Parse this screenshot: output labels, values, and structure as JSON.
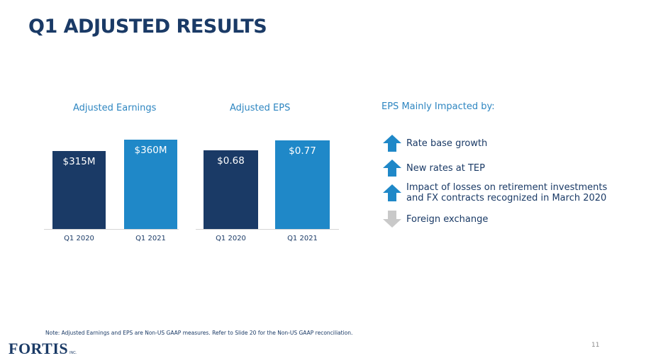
{
  "slide": {
    "title": "Q1 ADJUSTED RESULTS",
    "page_number": "11",
    "note": "Note: Adjusted Earnings and EPS are Non-US GAAP measures. Refer to Slide 20 for the Non-US GAAP reconciliation.",
    "logo_text": "FORTIS",
    "logo_suffix": "INC."
  },
  "chart_data": [
    {
      "type": "bar",
      "title": "Adjusted Earnings",
      "categories": [
        "Q1 2020",
        "Q1 2021"
      ],
      "values": [
        315,
        360
      ],
      "labels": [
        "$315M",
        "$360M"
      ],
      "unit": "$M",
      "ylim": [
        0,
        400
      ],
      "colors": [
        "#1a3a66",
        "#1f88c8"
      ]
    },
    {
      "type": "bar",
      "title": "Adjusted EPS",
      "categories": [
        "Q1 2020",
        "Q1 2021"
      ],
      "values": [
        0.68,
        0.77
      ],
      "labels": [
        "$0.68",
        "$0.77"
      ],
      "unit": "$",
      "ylim": [
        0,
        0.86
      ],
      "colors": [
        "#1a3a66",
        "#1f88c8"
      ]
    }
  ],
  "impacts": {
    "title": "EPS Mainly Impacted by:",
    "items": [
      {
        "text": "Rate base growth",
        "direction": "up",
        "color": "#1f88c8"
      },
      {
        "text": "New rates at TEP",
        "direction": "up",
        "color": "#1f88c8"
      },
      {
        "text": "Impact of losses on retirement investments\nand FX contracts recognized in March 2020",
        "direction": "up",
        "color": "#1f88c8"
      },
      {
        "text": "Foreign exchange",
        "direction": "down",
        "color": "#c9c9c9"
      }
    ]
  }
}
